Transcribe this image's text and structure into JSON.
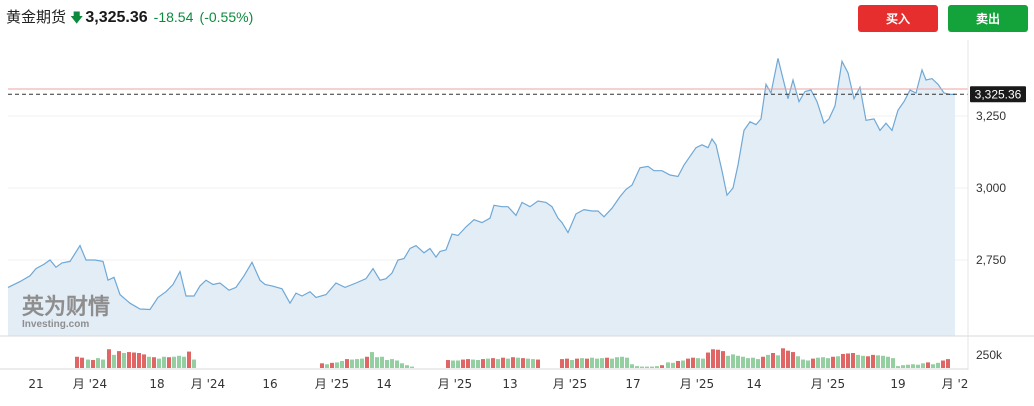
{
  "header": {
    "name": "黄金期货",
    "price": "3,325.36",
    "change": "-18.54",
    "change_pct": "(-0.55%)",
    "buy_label": "买入",
    "sell_label": "卖出"
  },
  "colors": {
    "line": "#6fa8d6",
    "area": "#e3edf6",
    "up_volume": "#e06666",
    "down_volume": "#93cfa0",
    "buy": "#e62e2e",
    "sell": "#14a33a",
    "change": "#0e8a3e"
  },
  "watermark": {
    "brand": "英为财情",
    "sub": "Investing.com"
  },
  "chart_data": {
    "type": "area",
    "current_price_label": "3,325.36",
    "current_price": 3325.36,
    "reference_price": 3343.9,
    "ylim": [
      2500,
      3500
    ],
    "y_ticks": [
      {
        "value": 2750,
        "label": "2,750"
      },
      {
        "value": 3000,
        "label": "3,000"
      },
      {
        "value": 3250,
        "label": "3,250"
      }
    ],
    "volume_tick": {
      "value": 250000,
      "label": "250k"
    },
    "x_ticks": [
      {
        "x": 36,
        "label": "21"
      },
      {
        "x": 90,
        "label": "月 '24"
      },
      {
        "x": 157,
        "label": "18"
      },
      {
        "x": 208,
        "label": "月 '24"
      },
      {
        "x": 270,
        "label": "16"
      },
      {
        "x": 332,
        "label": "月 '25"
      },
      {
        "x": 384,
        "label": "14"
      },
      {
        "x": 455,
        "label": "月 '25"
      },
      {
        "x": 510,
        "label": "13"
      },
      {
        "x": 570,
        "label": "月 '25"
      },
      {
        "x": 633,
        "label": "17"
      },
      {
        "x": 697,
        "label": "月 '25"
      },
      {
        "x": 754,
        "label": "14"
      },
      {
        "x": 828,
        "label": "月 '25"
      },
      {
        "x": 898,
        "label": "19"
      },
      {
        "x": 955,
        "label": "月 '2"
      }
    ],
    "price_points": [
      [
        8,
        2655
      ],
      [
        20,
        2675
      ],
      [
        30,
        2695
      ],
      [
        36,
        2720
      ],
      [
        44,
        2735
      ],
      [
        50,
        2750
      ],
      [
        56,
        2725
      ],
      [
        62,
        2740
      ],
      [
        70,
        2745
      ],
      [
        80,
        2800
      ],
      [
        86,
        2750
      ],
      [
        95,
        2750
      ],
      [
        103,
        2745
      ],
      [
        108,
        2680
      ],
      [
        114,
        2690
      ],
      [
        120,
        2630
      ],
      [
        130,
        2600
      ],
      [
        140,
        2580
      ],
      [
        150,
        2578
      ],
      [
        158,
        2620
      ],
      [
        166,
        2640
      ],
      [
        173,
        2665
      ],
      [
        180,
        2710
      ],
      [
        186,
        2625
      ],
      [
        194,
        2625
      ],
      [
        200,
        2660
      ],
      [
        206,
        2680
      ],
      [
        213,
        2665
      ],
      [
        220,
        2670
      ],
      [
        229,
        2645
      ],
      [
        236,
        2655
      ],
      [
        244,
        2695
      ],
      [
        252,
        2742
      ],
      [
        260,
        2680
      ],
      [
        265,
        2665
      ],
      [
        272,
        2660
      ],
      [
        282,
        2650
      ],
      [
        290,
        2600
      ],
      [
        296,
        2635
      ],
      [
        302,
        2625
      ],
      [
        310,
        2640
      ],
      [
        316,
        2620
      ],
      [
        326,
        2630
      ],
      [
        336,
        2670
      ],
      [
        345,
        2655
      ],
      [
        356,
        2670
      ],
      [
        366,
        2685
      ],
      [
        373,
        2720
      ],
      [
        380,
        2680
      ],
      [
        386,
        2685
      ],
      [
        392,
        2705
      ],
      [
        398,
        2750
      ],
      [
        404,
        2755
      ],
      [
        410,
        2790
      ],
      [
        416,
        2800
      ],
      [
        424,
        2775
      ],
      [
        430,
        2790
      ],
      [
        436,
        2760
      ],
      [
        440,
        2780
      ],
      [
        446,
        2785
      ],
      [
        452,
        2840
      ],
      [
        458,
        2835
      ],
      [
        466,
        2865
      ],
      [
        474,
        2890
      ],
      [
        482,
        2880
      ],
      [
        490,
        2895
      ],
      [
        494,
        2940
      ],
      [
        502,
        2935
      ],
      [
        508,
        2935
      ],
      [
        516,
        2905
      ],
      [
        522,
        2950
      ],
      [
        530,
        2935
      ],
      [
        538,
        2955
      ],
      [
        546,
        2950
      ],
      [
        552,
        2935
      ],
      [
        558,
        2895
      ],
      [
        562,
        2880
      ],
      [
        568,
        2845
      ],
      [
        576,
        2910
      ],
      [
        584,
        2925
      ],
      [
        592,
        2920
      ],
      [
        598,
        2920
      ],
      [
        604,
        2900
      ],
      [
        612,
        2930
      ],
      [
        620,
        2970
      ],
      [
        626,
        2995
      ],
      [
        632,
        3010
      ],
      [
        640,
        3070
      ],
      [
        648,
        3075
      ],
      [
        654,
        3060
      ],
      [
        662,
        3060
      ],
      [
        670,
        3045
      ],
      [
        678,
        3040
      ],
      [
        684,
        3080
      ],
      [
        690,
        3110
      ],
      [
        696,
        3140
      ],
      [
        702,
        3150
      ],
      [
        708,
        3140
      ],
      [
        712,
        3170
      ],
      [
        716,
        3150
      ],
      [
        722,
        3060
      ],
      [
        727,
        2975
      ],
      [
        733,
        3000
      ],
      [
        738,
        3080
      ],
      [
        744,
        3200
      ],
      [
        750,
        3230
      ],
      [
        756,
        3220
      ],
      [
        761,
        3240
      ],
      [
        766,
        3360
      ],
      [
        771,
        3330
      ],
      [
        778,
        3450
      ],
      [
        783,
        3380
      ],
      [
        788,
        3310
      ],
      [
        793,
        3375
      ],
      [
        799,
        3300
      ],
      [
        805,
        3335
      ],
      [
        811,
        3340
      ],
      [
        817,
        3300
      ],
      [
        824,
        3225
      ],
      [
        829,
        3240
      ],
      [
        835,
        3285
      ],
      [
        842,
        3440
      ],
      [
        848,
        3400
      ],
      [
        854,
        3310
      ],
      [
        860,
        3350
      ],
      [
        866,
        3235
      ],
      [
        874,
        3240
      ],
      [
        880,
        3200
      ],
      [
        886,
        3225
      ],
      [
        892,
        3200
      ],
      [
        898,
        3270
      ],
      [
        904,
        3300
      ],
      [
        910,
        3340
      ],
      [
        916,
        3330
      ],
      [
        922,
        3410
      ],
      [
        926,
        3375
      ],
      [
        932,
        3380
      ],
      [
        938,
        3360
      ],
      [
        944,
        3330
      ],
      [
        950,
        3325
      ],
      [
        955,
        3325
      ]
    ],
    "volume_bars": [
      {
        "x": 77,
        "v": 120000,
        "up": true
      },
      {
        "x": 82,
        "v": 110000,
        "up": true
      },
      {
        "x": 88,
        "v": 90000,
        "up": false
      },
      {
        "x": 93,
        "v": 85000,
        "up": true
      },
      {
        "x": 98,
        "v": 105000,
        "up": false
      },
      {
        "x": 103,
        "v": 90000,
        "up": false
      },
      {
        "x": 109,
        "v": 200000,
        "up": true
      },
      {
        "x": 114,
        "v": 140000,
        "up": false
      },
      {
        "x": 119,
        "v": 180000,
        "up": true
      },
      {
        "x": 124,
        "v": 160000,
        "up": false
      },
      {
        "x": 129,
        "v": 170000,
        "up": true
      },
      {
        "x": 134,
        "v": 165000,
        "up": true
      },
      {
        "x": 139,
        "v": 160000,
        "up": true
      },
      {
        "x": 144,
        "v": 145000,
        "up": true
      },
      {
        "x": 149,
        "v": 120000,
        "up": false
      },
      {
        "x": 154,
        "v": 115000,
        "up": true
      },
      {
        "x": 159,
        "v": 100000,
        "up": false
      },
      {
        "x": 164,
        "v": 120000,
        "up": false
      },
      {
        "x": 169,
        "v": 115000,
        "up": true
      },
      {
        "x": 174,
        "v": 120000,
        "up": false
      },
      {
        "x": 179,
        "v": 130000,
        "up": false
      },
      {
        "x": 184,
        "v": 120000,
        "up": false
      },
      {
        "x": 189,
        "v": 175000,
        "up": true
      },
      {
        "x": 194,
        "v": 90000,
        "up": false
      },
      {
        "x": 322,
        "v": 50000,
        "up": true
      },
      {
        "x": 327,
        "v": 40000,
        "up": false
      },
      {
        "x": 332,
        "v": 55000,
        "up": true
      },
      {
        "x": 337,
        "v": 60000,
        "up": false
      },
      {
        "x": 342,
        "v": 75000,
        "up": false
      },
      {
        "x": 347,
        "v": 95000,
        "up": true
      },
      {
        "x": 352,
        "v": 90000,
        "up": false
      },
      {
        "x": 357,
        "v": 95000,
        "up": false
      },
      {
        "x": 362,
        "v": 100000,
        "up": false
      },
      {
        "x": 367,
        "v": 120000,
        "up": true
      },
      {
        "x": 372,
        "v": 170000,
        "up": false
      },
      {
        "x": 377,
        "v": 115000,
        "up": false
      },
      {
        "x": 382,
        "v": 120000,
        "up": false
      },
      {
        "x": 387,
        "v": 85000,
        "up": false
      },
      {
        "x": 392,
        "v": 95000,
        "up": false
      },
      {
        "x": 397,
        "v": 80000,
        "up": false
      },
      {
        "x": 402,
        "v": 50000,
        "up": false
      },
      {
        "x": 407,
        "v": 30000,
        "up": false
      },
      {
        "x": 412,
        "v": 15000,
        "up": false
      },
      {
        "x": 448,
        "v": 85000,
        "up": true
      },
      {
        "x": 453,
        "v": 80000,
        "up": false
      },
      {
        "x": 458,
        "v": 80000,
        "up": false
      },
      {
        "x": 463,
        "v": 90000,
        "up": true
      },
      {
        "x": 468,
        "v": 95000,
        "up": true
      },
      {
        "x": 473,
        "v": 90000,
        "up": false
      },
      {
        "x": 478,
        "v": 85000,
        "up": false
      },
      {
        "x": 483,
        "v": 95000,
        "up": true
      },
      {
        "x": 488,
        "v": 100000,
        "up": false
      },
      {
        "x": 493,
        "v": 105000,
        "up": true
      },
      {
        "x": 498,
        "v": 95000,
        "up": false
      },
      {
        "x": 503,
        "v": 110000,
        "up": true
      },
      {
        "x": 508,
        "v": 100000,
        "up": false
      },
      {
        "x": 513,
        "v": 115000,
        "up": true
      },
      {
        "x": 518,
        "v": 110000,
        "up": false
      },
      {
        "x": 523,
        "v": 105000,
        "up": true
      },
      {
        "x": 528,
        "v": 100000,
        "up": false
      },
      {
        "x": 533,
        "v": 95000,
        "up": false
      },
      {
        "x": 538,
        "v": 90000,
        "up": true
      },
      {
        "x": 562,
        "v": 95000,
        "up": true
      },
      {
        "x": 567,
        "v": 100000,
        "up": true
      },
      {
        "x": 572,
        "v": 85000,
        "up": false
      },
      {
        "x": 577,
        "v": 100000,
        "up": true
      },
      {
        "x": 582,
        "v": 105000,
        "up": false
      },
      {
        "x": 587,
        "v": 100000,
        "up": true
      },
      {
        "x": 592,
        "v": 110000,
        "up": false
      },
      {
        "x": 597,
        "v": 100000,
        "up": false
      },
      {
        "x": 602,
        "v": 105000,
        "up": false
      },
      {
        "x": 607,
        "v": 110000,
        "up": true
      },
      {
        "x": 612,
        "v": 100000,
        "up": false
      },
      {
        "x": 617,
        "v": 115000,
        "up": false
      },
      {
        "x": 622,
        "v": 120000,
        "up": false
      },
      {
        "x": 627,
        "v": 110000,
        "up": false
      },
      {
        "x": 632,
        "v": 40000,
        "up": false
      },
      {
        "x": 637,
        "v": 20000,
        "up": false
      },
      {
        "x": 642,
        "v": 15000,
        "up": false
      },
      {
        "x": 647,
        "v": 15000,
        "up": false
      },
      {
        "x": 652,
        "v": 15000,
        "up": false
      },
      {
        "x": 657,
        "v": 20000,
        "up": false
      },
      {
        "x": 662,
        "v": 30000,
        "up": true
      },
      {
        "x": 668,
        "v": 60000,
        "up": false
      },
      {
        "x": 673,
        "v": 55000,
        "up": false
      },
      {
        "x": 678,
        "v": 75000,
        "up": true
      },
      {
        "x": 683,
        "v": 80000,
        "up": false
      },
      {
        "x": 688,
        "v": 100000,
        "up": true
      },
      {
        "x": 693,
        "v": 110000,
        "up": true
      },
      {
        "x": 698,
        "v": 105000,
        "up": false
      },
      {
        "x": 703,
        "v": 100000,
        "up": false
      },
      {
        "x": 708,
        "v": 165000,
        "up": true
      },
      {
        "x": 713,
        "v": 200000,
        "up": true
      },
      {
        "x": 718,
        "v": 195000,
        "up": true
      },
      {
        "x": 723,
        "v": 180000,
        "up": true
      },
      {
        "x": 728,
        "v": 130000,
        "up": false
      },
      {
        "x": 733,
        "v": 145000,
        "up": false
      },
      {
        "x": 738,
        "v": 130000,
        "up": false
      },
      {
        "x": 743,
        "v": 120000,
        "up": false
      },
      {
        "x": 748,
        "v": 105000,
        "up": false
      },
      {
        "x": 753,
        "v": 110000,
        "up": false
      },
      {
        "x": 758,
        "v": 95000,
        "up": false
      },
      {
        "x": 763,
        "v": 120000,
        "up": true
      },
      {
        "x": 768,
        "v": 140000,
        "up": false
      },
      {
        "x": 773,
        "v": 160000,
        "up": true
      },
      {
        "x": 778,
        "v": 135000,
        "up": false
      },
      {
        "x": 783,
        "v": 210000,
        "up": true
      },
      {
        "x": 788,
        "v": 185000,
        "up": true
      },
      {
        "x": 793,
        "v": 170000,
        "up": true
      },
      {
        "x": 798,
        "v": 125000,
        "up": false
      },
      {
        "x": 803,
        "v": 90000,
        "up": false
      },
      {
        "x": 808,
        "v": 80000,
        "up": false
      },
      {
        "x": 813,
        "v": 100000,
        "up": true
      },
      {
        "x": 818,
        "v": 110000,
        "up": false
      },
      {
        "x": 823,
        "v": 115000,
        "up": false
      },
      {
        "x": 828,
        "v": 105000,
        "up": false
      },
      {
        "x": 833,
        "v": 120000,
        "up": true
      },
      {
        "x": 838,
        "v": 125000,
        "up": false
      },
      {
        "x": 843,
        "v": 150000,
        "up": true
      },
      {
        "x": 848,
        "v": 155000,
        "up": true
      },
      {
        "x": 853,
        "v": 160000,
        "up": true
      },
      {
        "x": 858,
        "v": 140000,
        "up": false
      },
      {
        "x": 863,
        "v": 130000,
        "up": false
      },
      {
        "x": 868,
        "v": 125000,
        "up": true
      },
      {
        "x": 873,
        "v": 140000,
        "up": true
      },
      {
        "x": 878,
        "v": 135000,
        "up": false
      },
      {
        "x": 883,
        "v": 130000,
        "up": false
      },
      {
        "x": 888,
        "v": 120000,
        "up": false
      },
      {
        "x": 893,
        "v": 105000,
        "up": false
      },
      {
        "x": 898,
        "v": 20000,
        "up": false
      },
      {
        "x": 903,
        "v": 30000,
        "up": false
      },
      {
        "x": 908,
        "v": 35000,
        "up": false
      },
      {
        "x": 913,
        "v": 40000,
        "up": false
      },
      {
        "x": 918,
        "v": 35000,
        "up": false
      },
      {
        "x": 923,
        "v": 50000,
        "up": false
      },
      {
        "x": 928,
        "v": 60000,
        "up": true
      },
      {
        "x": 933,
        "v": 40000,
        "up": false
      },
      {
        "x": 938,
        "v": 55000,
        "up": false
      },
      {
        "x": 943,
        "v": 80000,
        "up": true
      },
      {
        "x": 948,
        "v": 95000,
        "up": true
      }
    ],
    "volume_max": 320000
  }
}
